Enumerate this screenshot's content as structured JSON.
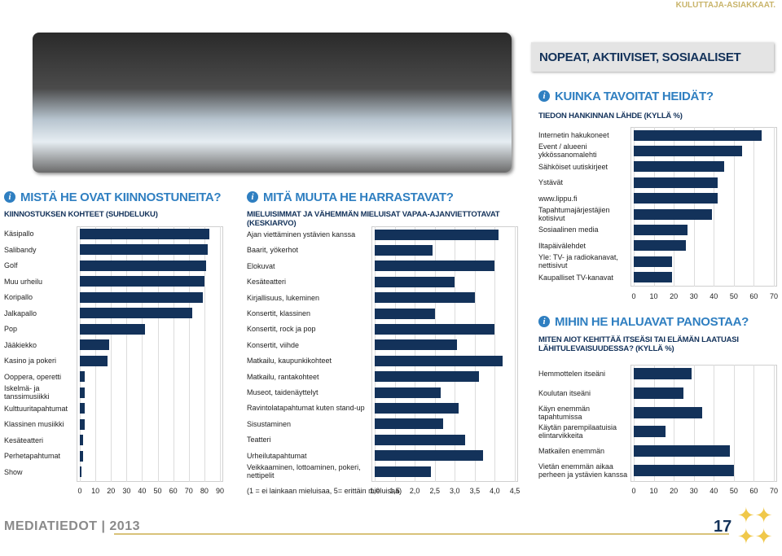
{
  "header": {
    "section": "KULUTTAJA-ASIAKKAAT.",
    "banner": "NOPEAT, AKTIIVISET, SOSIAALISET"
  },
  "chart_data": [
    {
      "type": "bar",
      "orientation": "horizontal",
      "title": "MISTÄ HE OVAT KIINNOSTUNEITA?",
      "subtitle": "KIINNOSTUKSEN KOHTEET (SUHDELUKU)",
      "categories": [
        "Käsipallo",
        "Salibandy",
        "Golf",
        "Muu urheilu",
        "Koripallo",
        "Jalkapallo",
        "Pop",
        "Jääkiekko",
        "Kasino ja pokeri",
        "Ooppera, operetti",
        "Iskelmä- ja tanssimusiikki",
        "Kulttuuritapahtumat",
        "Klassinen musiikki",
        "Kesäteatteri",
        "Perhetapahtumat",
        "Show"
      ],
      "values": [
        83,
        82,
        81,
        80,
        79,
        72,
        42,
        19,
        18,
        3,
        3,
        3,
        3,
        2,
        2,
        1
      ],
      "color": "#13325a",
      "xlim": [
        0,
        90
      ],
      "xticks": [
        0,
        10,
        20,
        30,
        40,
        50,
        60,
        70,
        80,
        90
      ],
      "grid": true
    },
    {
      "type": "bar",
      "orientation": "horizontal",
      "title": "MITÄ MUUTA HE HARRASTAVAT?",
      "subtitle": "MIELUISIMMAT JA VÄHEMMÄN MIELUISAT VAPAA-AJANVIETTOTAVAT (KESKIARVO)",
      "categories": [
        "Ajan viettäminen ystävien kanssa",
        "Baarit, yökerhot",
        "Elokuvat",
        "Kesäteatteri",
        "Kirjallisuus, lukeminen",
        "Konsertit, klassinen",
        "Konsertit, rock ja pop",
        "Konsertit, viihde",
        "Matkailu, kaupunkikohteet",
        "Matkailu, rantakohteet",
        "Museot, taidenäyttelyt",
        "Ravintolatapahtumat kuten stand-up",
        "Sisustaminen",
        "Teatteri",
        "Urheilutapahtumat",
        "Veikkaaminen, lottoaminen, pokeri, nettipelit"
      ],
      "values": [
        4.1,
        2.45,
        4.0,
        3.0,
        3.5,
        2.5,
        4.0,
        3.05,
        4.2,
        3.6,
        2.65,
        3.1,
        2.7,
        3.25,
        3.7,
        2.4
      ],
      "color": "#13325a",
      "xlabel": "(1 = ei lainkaan mieluisaa, 5= erittäin mieluisaa)",
      "xlim": [
        1,
        4.5
      ],
      "xticks": [
        {
          "value": 1,
          "label": "1,0"
        },
        {
          "value": 1.5,
          "label": "1,5"
        },
        {
          "value": 2,
          "label": "2,0"
        },
        {
          "value": 2.5,
          "label": "2,5"
        },
        {
          "value": 3,
          "label": "3,0"
        },
        {
          "value": 3.5,
          "label": "3,5"
        },
        {
          "value": 4,
          "label": "4,0"
        },
        {
          "value": 4.5,
          "label": "4,5"
        }
      ],
      "grid": true
    },
    {
      "type": "bar",
      "orientation": "horizontal",
      "title": "KUINKA TAVOITAT HEIDÄT?",
      "subtitle": "TIEDON HANKINNAN LÄHDE (KYLLÄ %)",
      "categories": [
        "Internetin hakukoneet",
        "Event / alueeni ykkössanomalehti",
        "Sähköiset uutiskirjeet",
        "Ystävät",
        "www.lippu.fi",
        "Tapahtumajärjestäjien kotisivut",
        "Sosiaalinen media",
        "Iltapäivälehdet",
        "Yle: TV- ja radiokanavat, nettisivut",
        "Kaupalliset TV-kanavat"
      ],
      "values": [
        64,
        54,
        45,
        42,
        42,
        39,
        27,
        26,
        19,
        19
      ],
      "color": "#13325a",
      "xlim": [
        0,
        70
      ],
      "xticks": [
        0,
        10,
        20,
        30,
        40,
        50,
        60,
        70
      ],
      "grid": true
    },
    {
      "type": "bar",
      "orientation": "horizontal",
      "title": "MIHIN HE HALUAVAT PANOSTAA?",
      "subtitle": "MITEN AIOT KEHITTÄÄ ITSEÄSI TAI ELÄMÄN LAATUASI LÄHITULEVAISUUDESSA? (KYLLÄ %)",
      "categories": [
        "Hemmottelen itseäni",
        "Koulutan itseäni",
        "Käyn enemmän tapahtumissa",
        "Käytän parempilaatuisia elintarvikkeita",
        "Matkailen enemmän",
        "Vietän enemmän aikaa perheen ja ystävien kanssa"
      ],
      "values": [
        29,
        25,
        34,
        16,
        48,
        50
      ],
      "color": "#13325a",
      "xlim": [
        0,
        70
      ],
      "xticks": [
        0,
        10,
        20,
        30,
        40,
        50,
        60,
        70
      ],
      "grid": true
    }
  ],
  "footer": {
    "publication": "MEDIATIEDOT | 2013",
    "page": "17"
  }
}
